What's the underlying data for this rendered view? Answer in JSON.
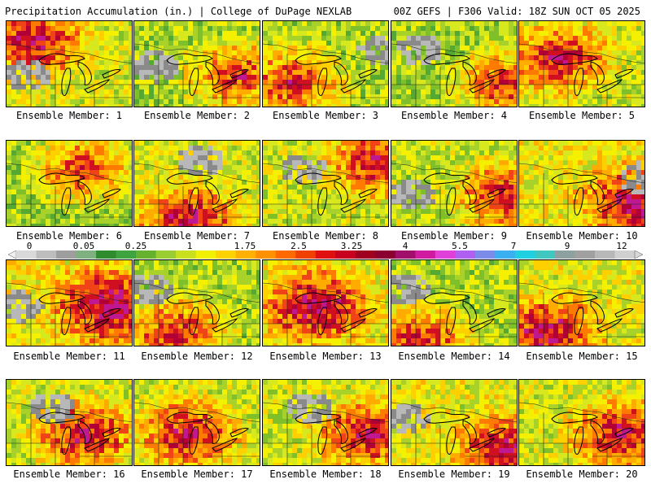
{
  "header": {
    "left": "Precipitation Accumulation (in.) | College of DuPage NEXLAB",
    "right": "00Z GEFS | F306 Valid: 18Z SUN OCT 05 2025"
  },
  "legend": {
    "ticks": [
      "0",
      "0.05",
      "0.25",
      "1",
      "1.75",
      "2.5",
      "3.25",
      "4",
      "5.5",
      "7",
      "9",
      "12"
    ],
    "colors": [
      "#d9d9d9",
      "#bdbdbd",
      "#9e9e9e",
      "#7fb07f",
      "#2e8b2e",
      "#3fa43f",
      "#66b22e",
      "#9acd32",
      "#c8e01e",
      "#f0f000",
      "#ffd200",
      "#ffb000",
      "#ff9000",
      "#ff6a00",
      "#f04000",
      "#e01010",
      "#c80020",
      "#a00020",
      "#8a0030",
      "#a0106a",
      "#d01aa0",
      "#e040d8",
      "#b060f0",
      "#7a8ce8",
      "#3ab0f0",
      "#20d0e0",
      "#40c8c0",
      "#8fa0a0",
      "#a0a0a0",
      "#b8b8b8",
      "#d0d0d0"
    ]
  },
  "panels": [
    {
      "label": "Ensemble Member: 1"
    },
    {
      "label": "Ensemble Member: 2"
    },
    {
      "label": "Ensemble Member: 3"
    },
    {
      "label": "Ensemble Member: 4"
    },
    {
      "label": "Ensemble Member: 5"
    },
    {
      "label": "Ensemble Member: 6"
    },
    {
      "label": "Ensemble Member: 7"
    },
    {
      "label": "Ensemble Member: 8"
    },
    {
      "label": "Ensemble Member: 9"
    },
    {
      "label": "Ensemble Member: 10"
    },
    {
      "label": "Ensemble Member: 11"
    },
    {
      "label": "Ensemble Member: 12"
    },
    {
      "label": "Ensemble Member: 13"
    },
    {
      "label": "Ensemble Member: 14"
    },
    {
      "label": "Ensemble Member: 15"
    },
    {
      "label": "Ensemble Member: 16"
    },
    {
      "label": "Ensemble Member: 17"
    },
    {
      "label": "Ensemble Member: 18"
    },
    {
      "label": "Ensemble Member: 19"
    },
    {
      "label": "Ensemble Member: 20"
    }
  ]
}
